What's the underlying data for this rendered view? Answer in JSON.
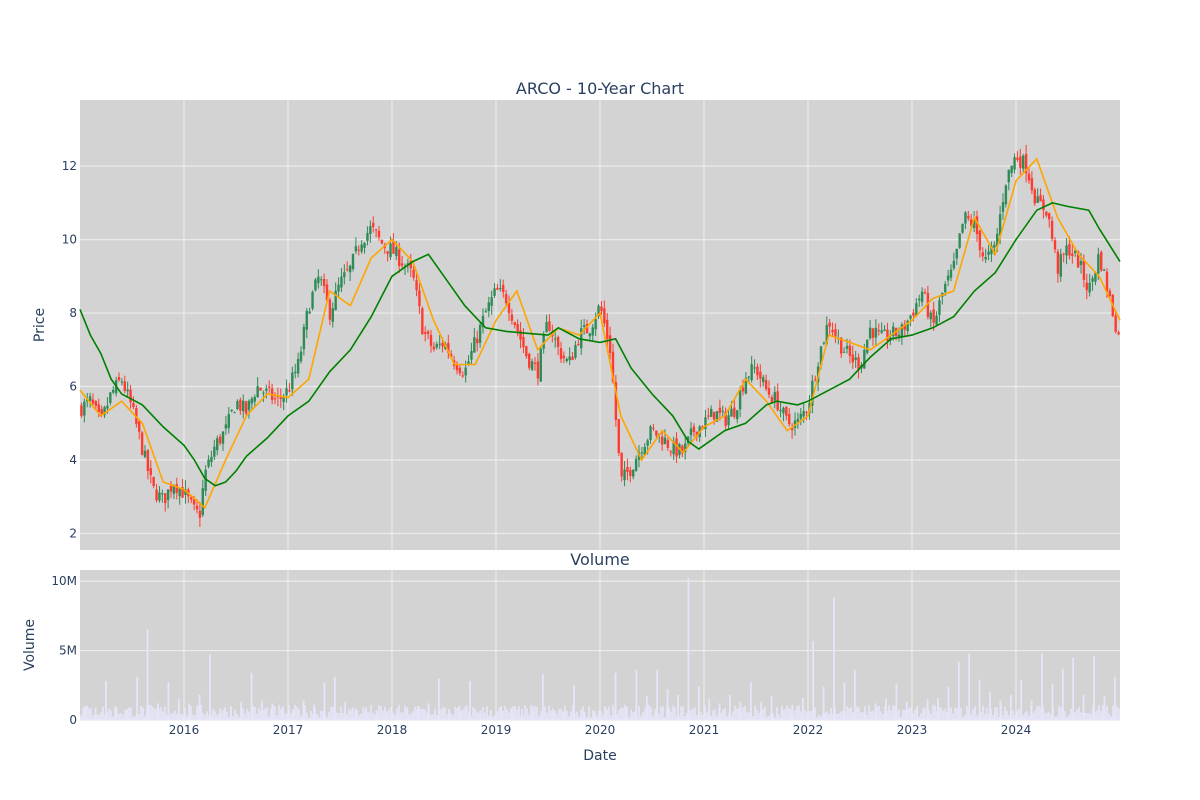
{
  "chart_data": [
    {
      "type": "candlestick",
      "title": "ARCO - 10-Year Chart",
      "ylabel": "Price",
      "xlabel": "",
      "ylim": [
        1.55,
        13.8
      ],
      "xlim": [
        2015.0,
        2025.0
      ],
      "yticks": [
        2,
        4,
        6,
        8,
        10,
        12
      ],
      "grid": true,
      "colors": {
        "plot_bg": "#d3d3d3",
        "grid": "#ebebeb",
        "up": "#2e8b57",
        "down": "#ff3b2f",
        "ma_short": "#ffa500",
        "ma_long": "#008000"
      },
      "series": [
        {
          "name": "",
          "type": "candlestick-close-trend",
          "x": [
            2015.0,
            2015.1,
            2015.2,
            2015.3,
            2015.4,
            2015.5,
            2015.6,
            2015.7,
            2015.8,
            2015.9,
            2016.0,
            2016.1,
            2016.15,
            2016.2,
            2016.3,
            2016.4,
            2016.5,
            2016.6,
            2016.7,
            2016.8,
            2016.9,
            2017.0,
            2017.1,
            2017.2,
            2017.3,
            2017.4,
            2017.5,
            2017.6,
            2017.7,
            2017.8,
            2017.9,
            2018.0,
            2018.1,
            2018.2,
            2018.3,
            2018.4,
            2018.5,
            2018.6,
            2018.7,
            2018.8,
            2018.9,
            2019.0,
            2019.1,
            2019.2,
            2019.3,
            2019.4,
            2019.5,
            2019.6,
            2019.7,
            2019.8,
            2019.9,
            2020.0,
            2020.1,
            2020.2,
            2020.3,
            2020.4,
            2020.5,
            2020.6,
            2020.7,
            2020.8,
            2020.9,
            2021.0,
            2021.1,
            2021.2,
            2021.3,
            2021.4,
            2021.5,
            2021.6,
            2021.7,
            2021.8,
            2021.9,
            2022.0,
            2022.1,
            2022.2,
            2022.3,
            2022.4,
            2022.5,
            2022.6,
            2022.7,
            2022.8,
            2022.9,
            2023.0,
            2023.1,
            2023.2,
            2023.3,
            2023.4,
            2023.5,
            2023.6,
            2023.7,
            2023.8,
            2023.9,
            2024.0,
            2024.1,
            2024.2,
            2024.3,
            2024.4,
            2024.5,
            2024.6,
            2024.7,
            2024.8,
            2024.9,
            2025.0
          ],
          "y": [
            5.4,
            5.6,
            5.0,
            5.8,
            6.2,
            5.4,
            4.3,
            3.2,
            2.9,
            3.4,
            3.1,
            2.6,
            2.5,
            3.6,
            4.4,
            4.8,
            5.6,
            5.3,
            6.0,
            5.8,
            5.6,
            5.9,
            6.6,
            8.2,
            9.0,
            8.0,
            8.8,
            9.2,
            10.0,
            10.3,
            9.9,
            9.7,
            9.4,
            9.0,
            7.5,
            7.0,
            7.2,
            6.7,
            6.4,
            7.2,
            8.0,
            8.6,
            8.4,
            7.6,
            6.8,
            6.4,
            7.8,
            7.0,
            6.6,
            7.4,
            7.6,
            8.2,
            7.0,
            3.4,
            3.8,
            4.4,
            4.8,
            4.6,
            4.3,
            4.2,
            4.8,
            5.0,
            5.3,
            5.1,
            5.4,
            6.3,
            6.5,
            5.9,
            5.6,
            5.0,
            5.0,
            5.5,
            6.8,
            7.8,
            7.2,
            6.8,
            6.6,
            7.6,
            7.3,
            7.4,
            7.5,
            8.0,
            8.6,
            7.6,
            8.6,
            9.2,
            10.6,
            10.4,
            9.4,
            9.8,
            11.6,
            12.3,
            12.0,
            11.0,
            10.8,
            9.2,
            9.8,
            9.4,
            8.6,
            9.6,
            8.4,
            7.2
          ]
        },
        {
          "name": "",
          "type": "line",
          "role": "short-moving-average",
          "x": [
            2015.0,
            2015.2,
            2015.4,
            2015.6,
            2015.8,
            2016.0,
            2016.2,
            2016.4,
            2016.6,
            2016.8,
            2017.0,
            2017.2,
            2017.4,
            2017.6,
            2017.8,
            2018.0,
            2018.2,
            2018.4,
            2018.6,
            2018.8,
            2019.0,
            2019.2,
            2019.4,
            2019.6,
            2019.8,
            2020.0,
            2020.2,
            2020.4,
            2020.6,
            2020.8,
            2021.0,
            2021.2,
            2021.4,
            2021.6,
            2021.8,
            2022.0,
            2022.2,
            2022.4,
            2022.6,
            2022.8,
            2023.0,
            2023.2,
            2023.4,
            2023.6,
            2023.8,
            2024.0,
            2024.2,
            2024.4,
            2024.6,
            2024.8,
            2025.0
          ],
          "y": [
            5.9,
            5.2,
            5.6,
            5.0,
            3.4,
            3.2,
            2.7,
            4.0,
            5.2,
            5.8,
            5.7,
            6.2,
            8.6,
            8.2,
            9.5,
            10.0,
            9.4,
            7.8,
            6.6,
            6.6,
            7.8,
            8.6,
            7.0,
            7.6,
            7.4,
            8.0,
            5.2,
            4.0,
            4.8,
            4.2,
            4.9,
            5.2,
            6.2,
            5.6,
            4.8,
            5.2,
            7.4,
            7.2,
            7.0,
            7.4,
            7.8,
            8.4,
            8.6,
            10.6,
            9.6,
            11.6,
            12.2,
            10.6,
            9.6,
            9.0,
            7.8
          ]
        },
        {
          "name": "",
          "type": "line",
          "role": "long-moving-average",
          "x": [
            2015.0,
            2015.1,
            2015.2,
            2015.3,
            2015.4,
            2015.6,
            2015.8,
            2016.0,
            2016.1,
            2016.2,
            2016.3,
            2016.4,
            2016.5,
            2016.6,
            2016.8,
            2017.0,
            2017.2,
            2017.4,
            2017.6,
            2017.8,
            2018.0,
            2018.2,
            2018.35,
            2018.5,
            2018.7,
            2018.9,
            2019.1,
            2019.3,
            2019.5,
            2019.6,
            2019.8,
            2020.0,
            2020.15,
            2020.3,
            2020.5,
            2020.7,
            2020.85,
            2020.95,
            2021.0,
            2021.2,
            2021.4,
            2021.6,
            2021.7,
            2021.9,
            2022.0,
            2022.2,
            2022.4,
            2022.6,
            2022.8,
            2023.0,
            2023.2,
            2023.4,
            2023.6,
            2023.8,
            2024.0,
            2024.2,
            2024.35,
            2024.5,
            2024.7,
            2024.8,
            2025.0
          ],
          "y": [
            8.1,
            7.4,
            6.9,
            6.2,
            5.8,
            5.5,
            4.9,
            4.4,
            4.0,
            3.5,
            3.3,
            3.4,
            3.7,
            4.1,
            4.6,
            5.2,
            5.6,
            6.4,
            7.0,
            7.9,
            9.0,
            9.4,
            9.6,
            9.0,
            8.2,
            7.6,
            7.5,
            7.45,
            7.4,
            7.6,
            7.3,
            7.2,
            7.3,
            6.5,
            5.8,
            5.2,
            4.5,
            4.3,
            4.4,
            4.8,
            5.0,
            5.5,
            5.6,
            5.5,
            5.6,
            5.9,
            6.2,
            6.8,
            7.3,
            7.4,
            7.6,
            7.9,
            8.6,
            9.1,
            10.0,
            10.8,
            11.0,
            10.9,
            10.8,
            10.3,
            9.4
          ]
        }
      ]
    },
    {
      "type": "bar",
      "title": "Volume",
      "ylabel": "Volume",
      "xlabel": "Date",
      "ylim": [
        0,
        10800000
      ],
      "xlim": [
        2015.0,
        2025.0
      ],
      "yticks": [
        0,
        5000000,
        10000000
      ],
      "ytick_labels": [
        "0",
        "5M",
        "10M"
      ],
      "xticks": [
        2016,
        2017,
        2018,
        2019,
        2020,
        2021,
        2022,
        2023,
        2024
      ],
      "xtick_labels": [
        "2016",
        "2017",
        "2018",
        "2019",
        "2020",
        "2021",
        "2022",
        "2023",
        "2024"
      ],
      "grid": true,
      "colors": {
        "bar": "#e6e6fa"
      },
      "x": [
        2015.0,
        2015.1,
        2015.2,
        2015.3,
        2015.4,
        2015.5,
        2015.6,
        2015.7,
        2015.8,
        2015.9,
        2016.0,
        2016.1,
        2016.2,
        2016.3,
        2016.4,
        2016.5,
        2016.6,
        2016.7,
        2016.8,
        2016.9,
        2017.0,
        2017.1,
        2017.2,
        2017.3,
        2017.4,
        2017.5,
        2017.6,
        2017.7,
        2017.8,
        2017.9,
        2018.0,
        2018.1,
        2018.2,
        2018.3,
        2018.4,
        2018.5,
        2018.6,
        2018.7,
        2018.8,
        2018.9,
        2019.0,
        2019.1,
        2019.2,
        2019.3,
        2019.4,
        2019.5,
        2019.6,
        2019.7,
        2019.8,
        2019.9,
        2020.0,
        2020.1,
        2020.2,
        2020.3,
        2020.4,
        2020.5,
        2020.6,
        2020.7,
        2020.8,
        2020.9,
        2021.0,
        2021.1,
        2021.2,
        2021.3,
        2021.4,
        2021.5,
        2021.6,
        2021.7,
        2021.8,
        2021.9,
        2022.0,
        2022.1,
        2022.2,
        2022.3,
        2022.4,
        2022.5,
        2022.6,
        2022.7,
        2022.8,
        2022.9,
        2023.0,
        2023.1,
        2023.2,
        2023.3,
        2023.4,
        2023.5,
        2023.6,
        2023.7,
        2023.8,
        2023.9,
        2024.0,
        2024.1,
        2024.2,
        2024.3,
        2024.4,
        2024.5,
        2024.6,
        2024.7,
        2024.8,
        2024.9
      ],
      "values": [
        1000000,
        900000,
        2800000,
        900000,
        700000,
        3100000,
        6500000,
        1200000,
        2700000,
        1500000,
        1200000,
        1800000,
        4700000,
        800000,
        1000000,
        1300000,
        3400000,
        1400000,
        1200000,
        800000,
        700000,
        1400000,
        1100000,
        2700000,
        3100000,
        1300000,
        800000,
        900000,
        700000,
        600000,
        600000,
        700000,
        1000000,
        1200000,
        3000000,
        800000,
        900000,
        2800000,
        700000,
        600000,
        1000000,
        700000,
        800000,
        600000,
        3300000,
        700000,
        600000,
        2500000,
        600000,
        500000,
        1000000,
        3400000,
        900000,
        3600000,
        1700000,
        3600000,
        2200000,
        1800000,
        10200000,
        2400000,
        1500000,
        1200000,
        1800000,
        1300000,
        2700000,
        1300000,
        1700000,
        1000000,
        1100000,
        1600000,
        5700000,
        2400000,
        8800000,
        2700000,
        3600000,
        1000000,
        1200000,
        1500000,
        2600000,
        1300000,
        1000000,
        1500000,
        1600000,
        2400000,
        4200000,
        4800000,
        2900000,
        2000000,
        1400000,
        1800000,
        2900000,
        1400000,
        4800000,
        2600000,
        3700000,
        4500000,
        1800000,
        4600000,
        1700000,
        3100000
      ]
    }
  ]
}
